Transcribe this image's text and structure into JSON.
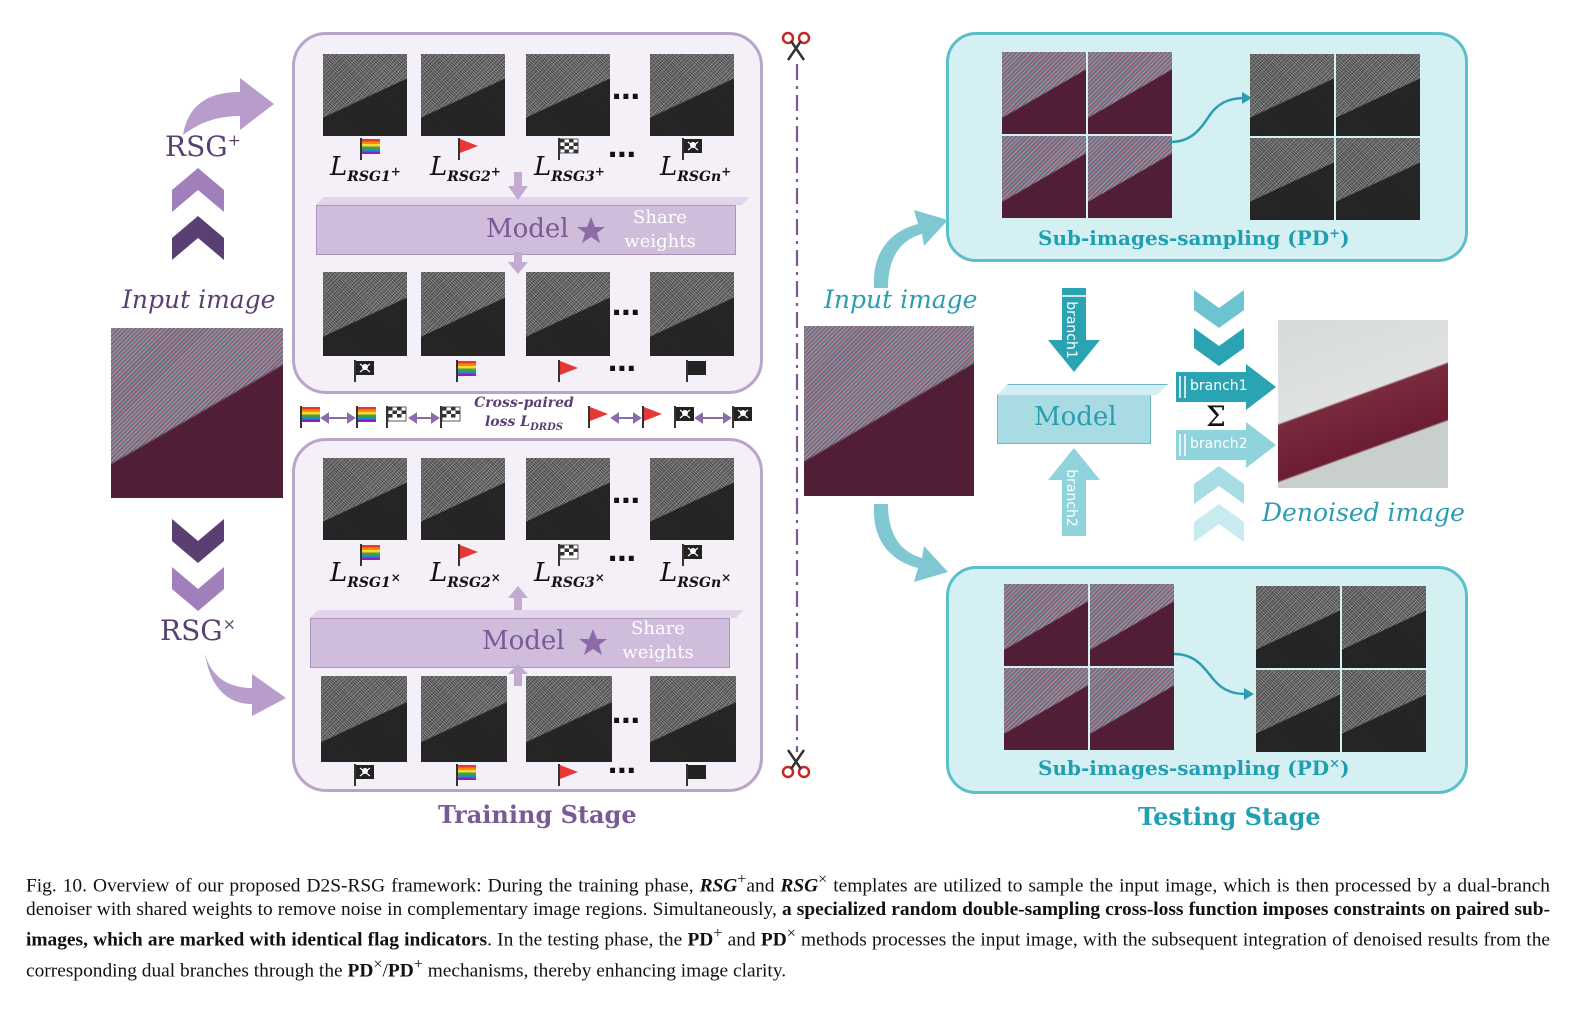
{
  "training": {
    "title": "Training Stage",
    "rsg_plus": "RSG",
    "rsg_plus_sup": "+",
    "rsg_times": "RSG",
    "rsg_times_sup": "×",
    "input_label": "Input image",
    "model_label": "Model",
    "share_line1": "Share",
    "share_line2": "weights",
    "dots": "⋯",
    "loss_top": [
      {
        "L": "L",
        "sub": "RSG",
        "idx": "1",
        "sup": "+"
      },
      {
        "L": "L",
        "sub": "RSG",
        "idx": "2",
        "sup": "+"
      },
      {
        "L": "L",
        "sub": "RSG",
        "idx": "3",
        "sup": "+"
      },
      {
        "L": "L",
        "sub": "RSG",
        "idx": "n",
        "sup": "+"
      }
    ],
    "loss_bottom": [
      {
        "L": "L",
        "sub": "RSG",
        "idx": "1",
        "sup": "×"
      },
      {
        "L": "L",
        "sub": "RSG",
        "idx": "2",
        "sup": "×"
      },
      {
        "L": "L",
        "sub": "RSG",
        "idx": "3",
        "sup": "×"
      },
      {
        "L": "L",
        "sub": "RSG",
        "idx": "n",
        "sup": "×"
      }
    ],
    "cross_line1": "Cross-paired",
    "cross_line2": "loss L",
    "cross_sub": "DRDS"
  },
  "testing": {
    "title": "Testing Stage",
    "input_label": "Input image",
    "model_label": "Model",
    "sampling_top": "Sub-images-sampling (PD",
    "sampling_top_sup": "+",
    "sampling_bottom": "Sub-images-sampling (PD",
    "sampling_bottom_sup": "×",
    "close_paren": ")",
    "branch1": "branch1",
    "branch2": "branch2",
    "sum": "Σ",
    "denoised_label": "Denoised image"
  },
  "colors": {
    "train_accent": "#7a5a94",
    "test_accent": "#2aa3b3"
  },
  "caption": {
    "p1": "Fig. 10.  Overview of our proposed D2S-RSG framework: During the training phase, ",
    "rsg1": "RSG",
    "rsg1_sup": "+",
    "p2": "and ",
    "rsg2": "RSG",
    "rsg2_sup": "×",
    "p3": " templates are utilized to sample the input image, which is then processed by a dual-branch denoiser with shared weights to remove noise in complementary image regions. Simultaneously, ",
    "bold": "a specialized random double-sampling cross-loss function imposes constraints on paired sub-images, which are marked with identical flag indicators",
    "p4": ". In the testing phase, the ",
    "pd1": "PD",
    "pd1_sup": "+",
    "p5": " and ",
    "pd2": "PD",
    "pd2_sup": "×",
    "p6": " methods processes the input image, with the subsequent integration of denoised results from the corresponding dual branches through the ",
    "pd3": "PD",
    "pd3_sup": "×",
    "slash": "/",
    "pd4": "PD",
    "pd4_sup": "+",
    "p7": " mechanisms, thereby enhancing image clarity."
  }
}
